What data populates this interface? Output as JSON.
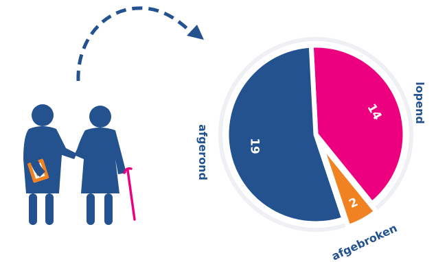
{
  "colors": {
    "navy": "#23528f",
    "pink": "#ec0080",
    "orange": "#f08221",
    "ring": "#eef0f3",
    "white": "#ffffff"
  },
  "icons": {
    "people": "elderly-couple-with-cane-icon",
    "arrow": "dashed-curved-arrow-icon"
  },
  "chart_data": {
    "type": "pie",
    "categories": [
      "lopend",
      "afgebroken",
      "afgerond"
    ],
    "values": [
      14,
      2,
      19
    ],
    "slice_colors": [
      "#ec0080",
      "#f08221",
      "#23528f"
    ],
    "title": "",
    "legend": "none",
    "data_labels": true
  }
}
